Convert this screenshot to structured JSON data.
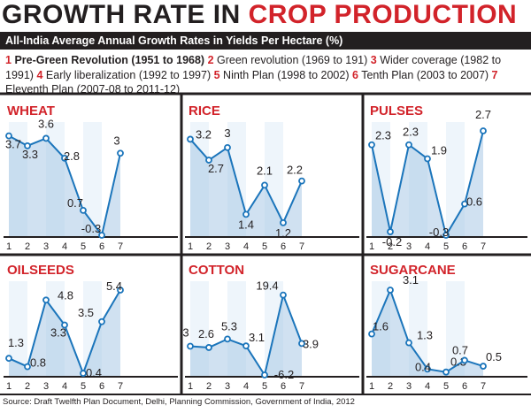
{
  "header": {
    "title_part1": "GROWTH RATE IN ",
    "title_part2": "CROP PRODUCTION",
    "subtitle": "All-India Average Annual Growth Rates in Yields Per Hectare (%)"
  },
  "legend": [
    {
      "num": "1",
      "label": "Pre-Green Revolution (1951 to 1968)"
    },
    {
      "num": "2",
      "label": "Green revolution (1969 to 191)"
    },
    {
      "num": "3",
      "label": "Wider coverage (1982 to 1991)"
    },
    {
      "num": "4",
      "label": "Early liberalization (1992 to 1997)"
    },
    {
      "num": "5",
      "label": "Ninth Plan (1998 to 2002)"
    },
    {
      "num": "6",
      "label": "Tenth Plan (2003 to 2007)"
    },
    {
      "num": "7",
      "label": "Eleventh Plan (2007-08 to 2011-12)"
    }
  ],
  "source": "Source: Draft Twelfth Plan Document, Delhi, Planning Commission, Government of India, 2012",
  "colors": {
    "accent": "#d2232a",
    "text": "#231f20",
    "line": "#1b75bb",
    "fill_light": "#dbe9f6",
    "fill_dark": "#a9c8e6"
  },
  "chart_data": [
    {
      "type": "line",
      "title": "WHEAT",
      "x": [
        1,
        2,
        3,
        4,
        5,
        6,
        7
      ],
      "values": [
        3.7,
        3.3,
        3.6,
        2.8,
        0.7,
        -0.3,
        3
      ],
      "labels": [
        "3.7",
        "3.3",
        "3.6",
        "2.8",
        "0.7",
        "-0.3",
        "3"
      ]
    },
    {
      "type": "line",
      "title": "RICE",
      "x": [
        1,
        2,
        3,
        4,
        5,
        6,
        7
      ],
      "values": [
        3.2,
        2.7,
        3,
        1.4,
        2.1,
        1.2,
        2.2
      ],
      "labels": [
        "3.2",
        "2.7",
        "3",
        "1.4",
        "2.1",
        "1.2",
        "2.2"
      ]
    },
    {
      "type": "line",
      "title": "PULSES",
      "x": [
        1,
        2,
        3,
        4,
        5,
        6,
        7
      ],
      "values": [
        2.3,
        -0.2,
        2.3,
        1.9,
        -0.3,
        0.6,
        2.7
      ],
      "labels": [
        "2.3",
        "-0.2",
        "2.3",
        "1.9",
        "-0.3",
        "0.6",
        "2.7"
      ]
    },
    {
      "type": "line",
      "title": "OILSEEDS",
      "x": [
        1,
        2,
        3,
        4,
        5,
        6,
        7
      ],
      "values": [
        1.3,
        0.8,
        4.8,
        3.3,
        0.4,
        3.5,
        5.4
      ],
      "labels": [
        "1.3",
        "0.8",
        "4.8",
        "3.3",
        "0.4",
        "3.5",
        "5.4"
      ]
    },
    {
      "type": "line",
      "title": "COTTON",
      "x": [
        1,
        2,
        3,
        4,
        5,
        6,
        7
      ],
      "values": [
        3,
        2.6,
        5.3,
        3.1,
        -6.2,
        19.4,
        3.9
      ],
      "labels": [
        "3",
        "2.6",
        "5.3",
        "3.1",
        "-6.2",
        "19.4",
        "3.9"
      ]
    },
    {
      "type": "line",
      "title": "SUGARCANE",
      "x": [
        1,
        2,
        3,
        4,
        5,
        6,
        7
      ],
      "values": [
        1.6,
        3.1,
        1.3,
        0.4,
        0.3,
        0.7,
        0.5
      ],
      "labels": [
        "1.6",
        "3.1",
        "1.3",
        "0.4",
        "0.3",
        "0.7",
        "0.5"
      ]
    }
  ]
}
